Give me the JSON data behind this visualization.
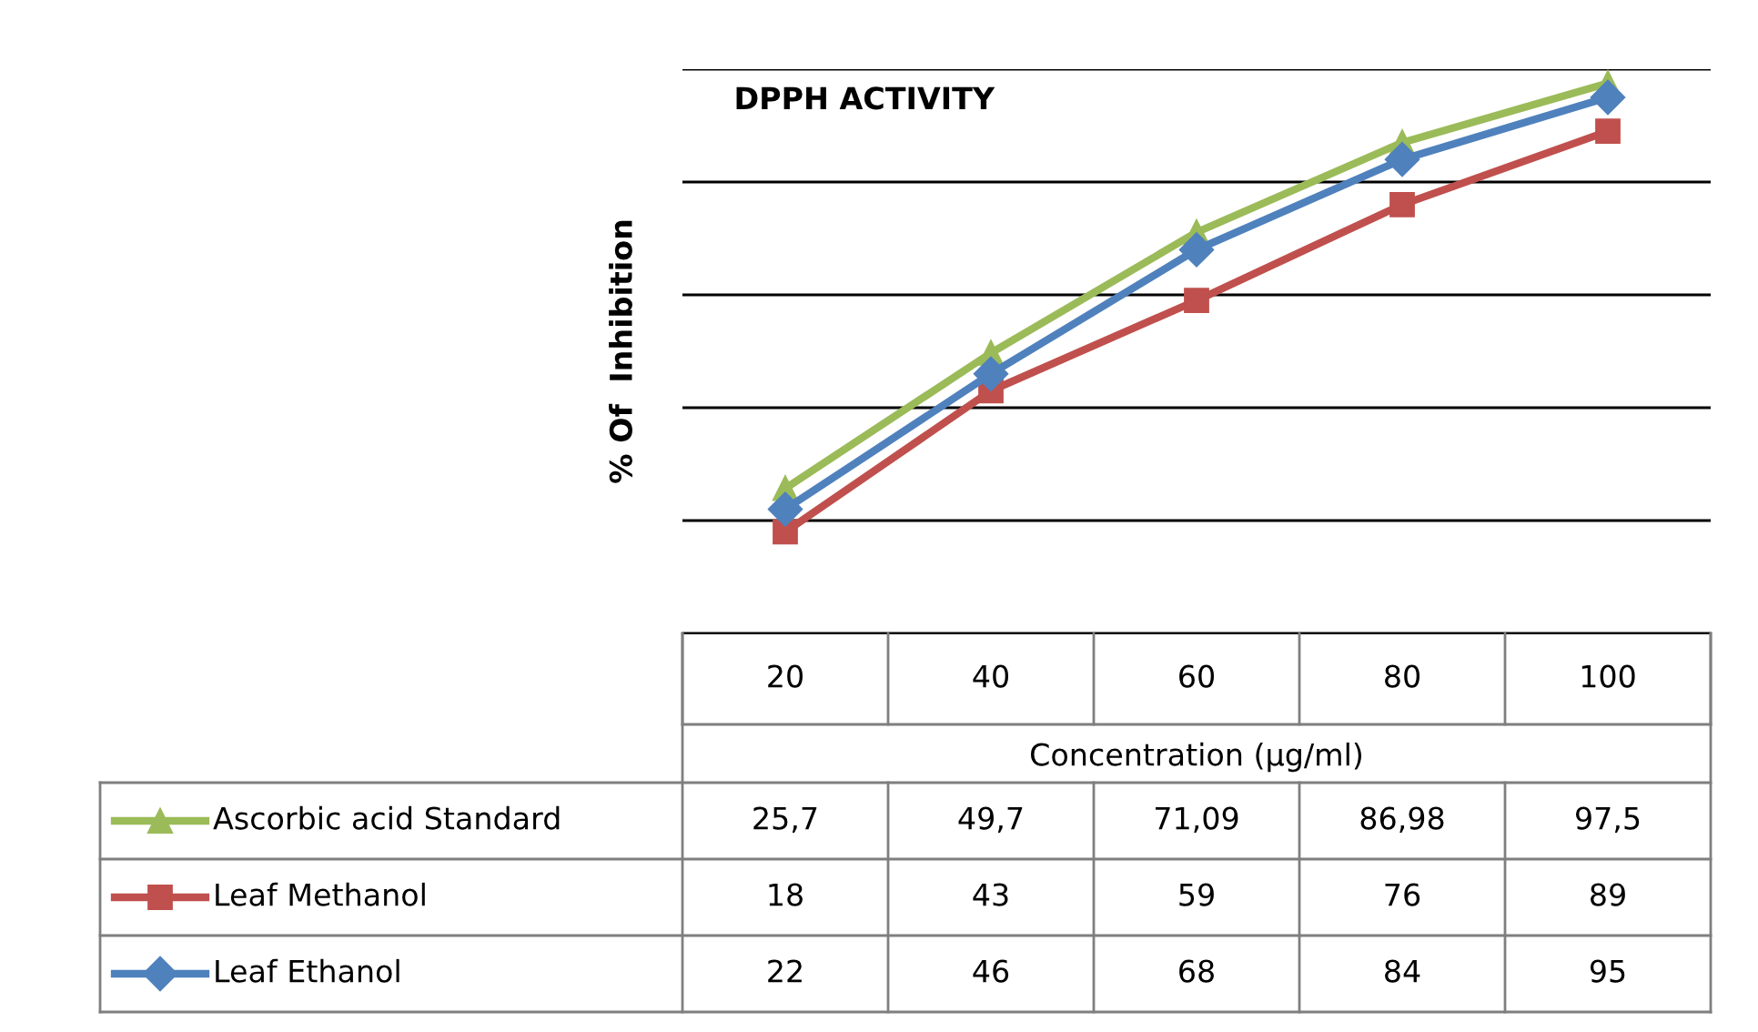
{
  "chart_data": {
    "type": "line",
    "title": "DPPH ACTIVITY",
    "xlabel": "Concentration (µg/ml)",
    "ylabel": "% Of  Inhibition",
    "categories": [
      "20",
      "40",
      "60",
      "80",
      "100"
    ],
    "series": [
      {
        "name": "Ascorbic acid Standard",
        "color": "#9bbb59",
        "marker": "triangle",
        "values": [
          25.7,
          49.7,
          71.09,
          86.98,
          97.5
        ],
        "value_labels": [
          "25,7",
          "49,7",
          "71,09",
          "86,98",
          "97,5"
        ]
      },
      {
        "name": "Leaf Methanol",
        "color": "#c0504d",
        "marker": "square",
        "values": [
          18,
          43,
          59,
          76,
          89
        ],
        "value_labels": [
          "18",
          "43",
          "59",
          "76",
          "89"
        ]
      },
      {
        "name": "Leaf Ethanol",
        "color": "#4f81bd",
        "marker": "diamond",
        "values": [
          22,
          46,
          68,
          84,
          95
        ],
        "value_labels": [
          "22",
          "46",
          "68",
          "84",
          "95"
        ]
      }
    ],
    "ylim": [
      0,
      100
    ],
    "yticks": [
      {
        "value": 0,
        "label": null
      },
      {
        "value": 20,
        "label": null
      },
      {
        "value": 40,
        "label": null
      },
      {
        "value": 60,
        "label": null
      },
      {
        "value": 80,
        "label": null
      },
      {
        "value": 100,
        "label": null
      }
    ],
    "grid": "y",
    "legend": "bottom",
    "line_style": "solid"
  }
}
